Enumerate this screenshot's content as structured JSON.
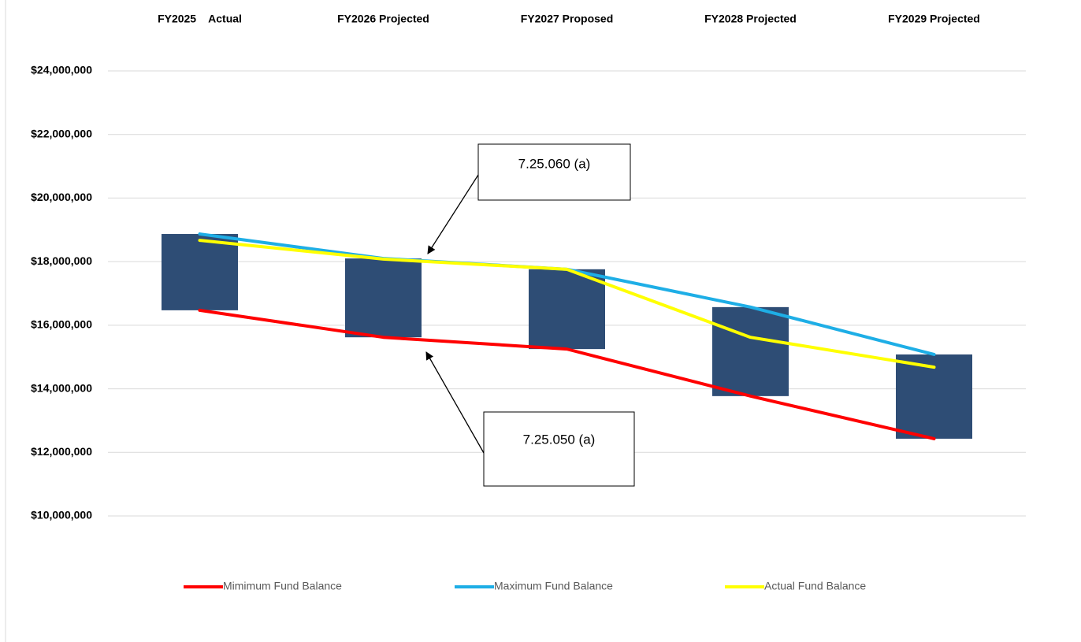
{
  "chart_data": {
    "type": "line",
    "categories": [
      "FY2025    Actual",
      "FY2026 Projected",
      "FY2027 Proposed",
      "FY2028 Projected",
      "FY2029 Projected"
    ],
    "series": [
      {
        "name": "Mimimum Fund Balance",
        "color": "#ff0000",
        "values": [
          16470000,
          15620000,
          15250000,
          13770000,
          12430000
        ]
      },
      {
        "name": "Maximum Fund Balance",
        "color": "#1eaee6",
        "values": [
          18870000,
          18100000,
          17760000,
          16570000,
          15080000
        ]
      },
      {
        "name": "Actual Fund Balance",
        "color": "#ffff00",
        "values": [
          18670000,
          18080000,
          17760000,
          15620000,
          14680000
        ]
      }
    ],
    "bar_color": "#2e4d75",
    "ylim": [
      10000000,
      24000000
    ],
    "yticks": [
      {
        "value": 10000000,
        "label": "$10,000,000"
      },
      {
        "value": 12000000,
        "label": "$12,000,000"
      },
      {
        "value": 14000000,
        "label": "$14,000,000"
      },
      {
        "value": 16000000,
        "label": "$16,000,000"
      },
      {
        "value": 18000000,
        "label": "$18,000,000"
      },
      {
        "value": 20000000,
        "label": "$20,000,000"
      },
      {
        "value": 22000000,
        "label": "$22,000,000"
      },
      {
        "value": 24000000,
        "label": "$24,000,000"
      }
    ],
    "grid": true,
    "annotations": [
      "7.25.060 (a)",
      "7.25.050 (a)"
    ]
  }
}
